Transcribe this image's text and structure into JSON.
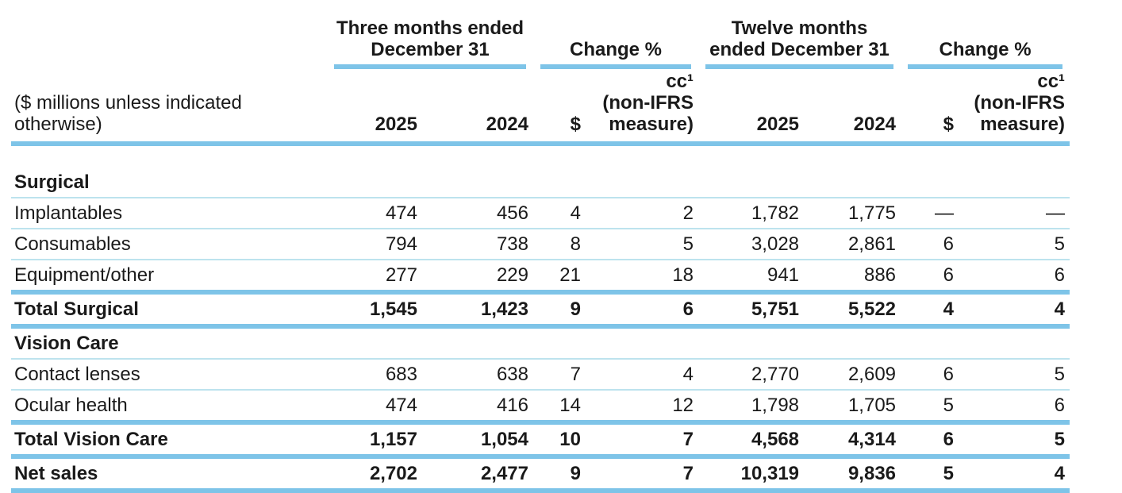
{
  "colors": {
    "rule_thick": "#7ec4e8",
    "rule_thin": "#bde3ee",
    "text": "#1a1a1a"
  },
  "table": {
    "left_header": "($ millions unless indicated\notherwise)",
    "groups": [
      {
        "title": "Three months ended\nDecember 31"
      },
      {
        "title": "Change %"
      },
      {
        "title": "Twelve months\nended December 31"
      },
      {
        "title": "Change %"
      }
    ],
    "columns": [
      "2025",
      "2024",
      "$",
      "cc¹\n(non-IFRS\nmeasure)",
      "2025",
      "2024",
      "$",
      "cc¹\n(non-IFRS\nmeasure)"
    ],
    "rows": [
      {
        "label": "Surgical",
        "type": "section",
        "border": "thin",
        "values": [
          "",
          "",
          "",
          "",
          "",
          "",
          "",
          ""
        ]
      },
      {
        "label": "Implantables",
        "type": "data",
        "border": "thin",
        "values": [
          "474",
          "456",
          "4",
          "2",
          "1,782",
          "1,775",
          "—",
          "—"
        ]
      },
      {
        "label": "Consumables",
        "type": "data",
        "border": "thin",
        "values": [
          "794",
          "738",
          "8",
          "5",
          "3,028",
          "2,861",
          "6",
          "5"
        ]
      },
      {
        "label": "Equipment/other",
        "type": "data",
        "border": "thick",
        "values": [
          "277",
          "229",
          "21",
          "18",
          "941",
          "886",
          "6",
          "6"
        ]
      },
      {
        "label": "Total Surgical",
        "type": "total",
        "border": "thick",
        "values": [
          "1,545",
          "1,423",
          "9",
          "6",
          "5,751",
          "5,522",
          "4",
          "4"
        ]
      },
      {
        "label": "Vision Care",
        "type": "section",
        "border": "thin",
        "values": [
          "",
          "",
          "",
          "",
          "",
          "",
          "",
          ""
        ]
      },
      {
        "label": "Contact lenses",
        "type": "data",
        "border": "thin",
        "values": [
          "683",
          "638",
          "7",
          "4",
          "2,770",
          "2,609",
          "6",
          "5"
        ]
      },
      {
        "label": "Ocular health",
        "type": "data",
        "border": "thick",
        "values": [
          "474",
          "416",
          "14",
          "12",
          "1,798",
          "1,705",
          "5",
          "6"
        ]
      },
      {
        "label": "Total Vision Care",
        "type": "total",
        "border": "thick",
        "values": [
          "1,157",
          "1,054",
          "10",
          "7",
          "4,568",
          "4,314",
          "6",
          "5"
        ]
      },
      {
        "label": "Net sales",
        "type": "total",
        "border": "thick",
        "values": [
          "2,702",
          "2,477",
          "9",
          "7",
          "10,319",
          "9,836",
          "5",
          "4"
        ]
      }
    ]
  }
}
